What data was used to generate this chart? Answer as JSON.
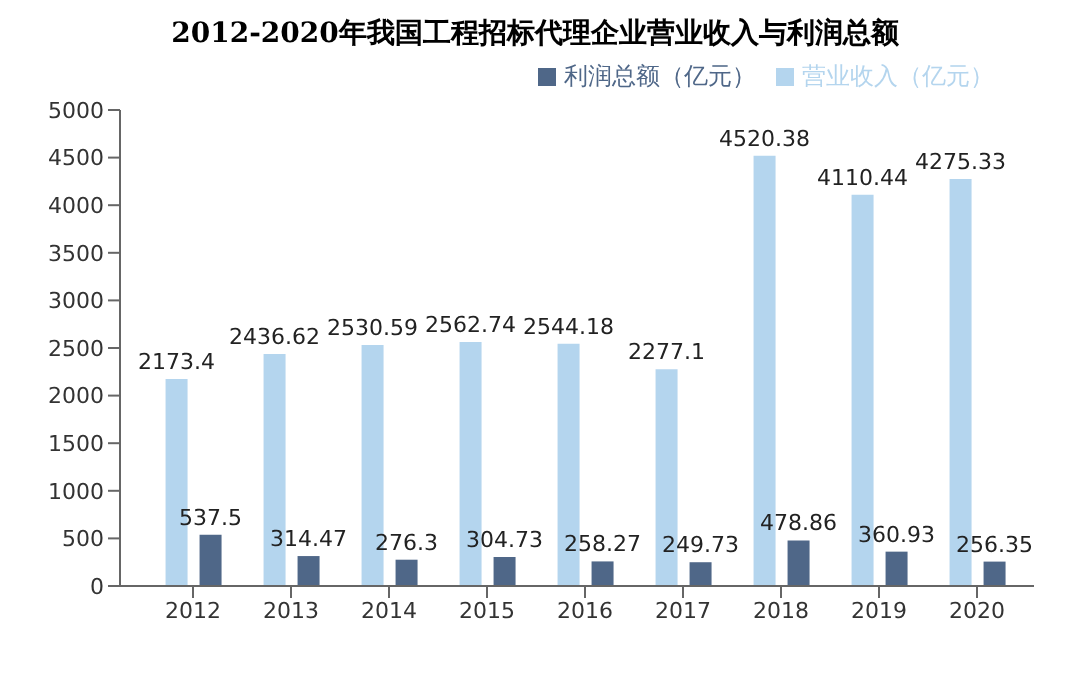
{
  "chart_data": {
    "type": "bar",
    "title": "2012-2020年我国工程招标代理企业营业收入与利润总额",
    "categories": [
      "2012",
      "2013",
      "2014",
      "2015",
      "2016",
      "2017",
      "2018",
      "2019",
      "2020"
    ],
    "series": [
      {
        "name": "营业收入（亿元）",
        "color": "#b4d5ee",
        "values": [
          2173.4,
          2436.62,
          2530.59,
          2562.74,
          2544.18,
          2277.1,
          4520.38,
          4110.44,
          4275.33
        ]
      },
      {
        "name": "利润总额（亿元）",
        "color": "#4f6788",
        "values": [
          537.5,
          314.47,
          276.3,
          304.73,
          258.27,
          249.73,
          478.86,
          360.93,
          256.35
        ]
      }
    ],
    "ylim": [
      0,
      5000
    ],
    "yticks": [
      0,
      500,
      1000,
      1500,
      2000,
      2500,
      3000,
      3500,
      4000,
      4500,
      5000
    ],
    "grid": false,
    "legend": "top right",
    "data_labels": true
  }
}
